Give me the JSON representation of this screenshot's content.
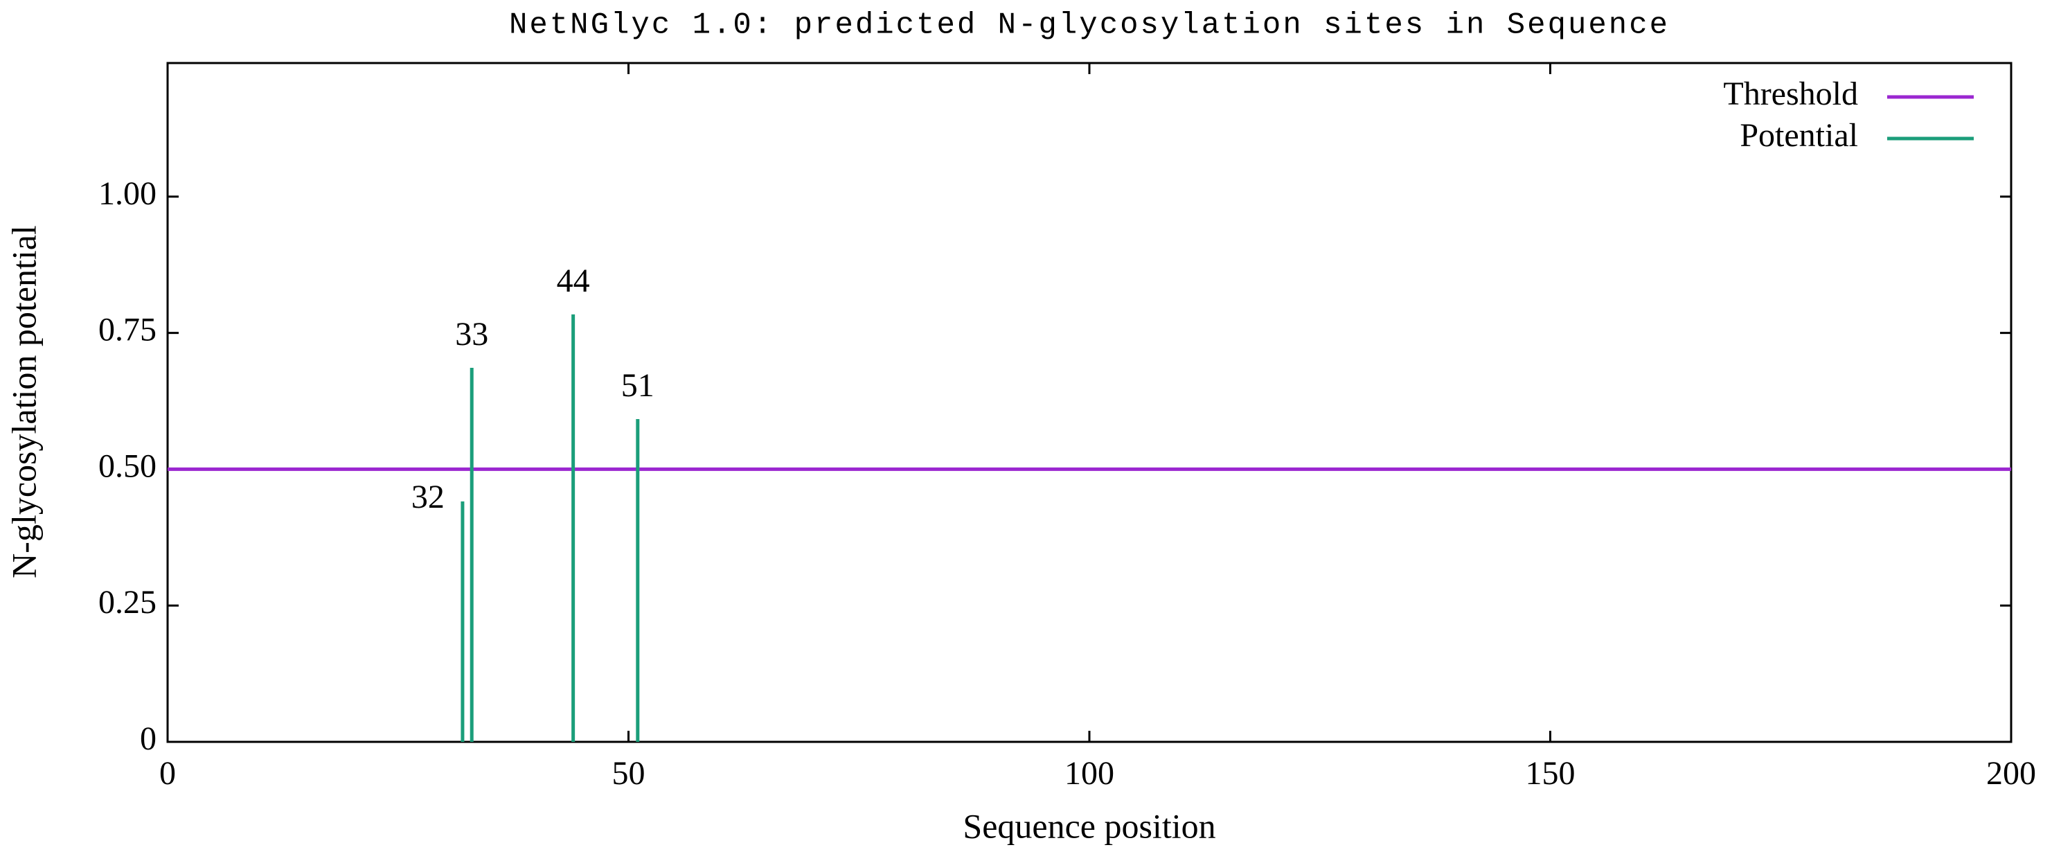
{
  "chart_data": {
    "type": "line",
    "title": "NetNGlyc 1.0: predicted N-glycosylation sites in Sequence",
    "x_label": "Sequence position",
    "y_label": "N-glycosylation potential",
    "xlim": [
      0,
      200
    ],
    "xticks": [
      0,
      50,
      100,
      150,
      200
    ],
    "ylim": [
      0,
      1.245
    ],
    "yticks": [
      0,
      {
        "value": 0.25,
        "label": "0.25"
      },
      {
        "value": 0.5,
        "label": "0.50"
      },
      {
        "value": 0.75,
        "label": "0.75"
      },
      {
        "value": 1,
        "label": "1.00"
      }
    ],
    "legend": "upper right",
    "series": [
      {
        "name": "Threshold",
        "color": "#9b27d0",
        "style": "line",
        "x": [
          0,
          200
        ],
        "values": [
          0.5,
          0.5
        ]
      },
      {
        "name": "Potential",
        "color": "#1b9e7a",
        "style": "impulse",
        "x": [
          32,
          33,
          44,
          51
        ],
        "values": [
          0.441,
          0.686,
          0.784,
          0.592
        ]
      }
    ]
  }
}
